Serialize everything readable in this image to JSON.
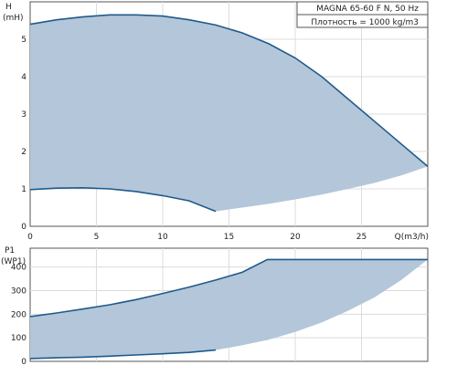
{
  "colors": {
    "fill": "#b4c6d9",
    "curve": "#1f5a8c",
    "grid": "#dcdcdc",
    "axis": "#555555",
    "text": "#222222"
  },
  "chart_data": [
    {
      "id": "head",
      "type": "area",
      "title": "",
      "ylabel": "H",
      "yunit": "(mH)",
      "xlabel": "Q(m3/h)",
      "xlim": [
        0,
        30
      ],
      "ylim": [
        0,
        6
      ],
      "xticks": [
        0,
        5,
        10,
        15,
        20,
        25
      ],
      "yticks": [
        0,
        1,
        2,
        3,
        4,
        5
      ],
      "grid": true,
      "info_box": {
        "placement": "top-right",
        "lines": [
          "MAGNA 65-60 F N, 50 Hz",
          "Плотность = 1000 kg/m3"
        ]
      },
      "series": [
        {
          "role": "upper",
          "x": [
            0,
            2,
            4,
            6,
            8,
            10,
            12,
            14,
            16,
            18,
            20,
            22,
            24,
            26,
            28,
            30
          ],
          "y": [
            5.4,
            5.52,
            5.6,
            5.65,
            5.65,
            5.62,
            5.52,
            5.38,
            5.17,
            4.88,
            4.5,
            4.0,
            3.4,
            2.8,
            2.2,
            1.6
          ]
        },
        {
          "role": "lower",
          "x": [
            0,
            2,
            4,
            6,
            8,
            10,
            12,
            14
          ],
          "y": [
            0.98,
            1.02,
            1.03,
            1.0,
            0.93,
            0.82,
            0.68,
            0.4
          ]
        },
        {
          "role": "min-boundary",
          "x": [
            14,
            16,
            18,
            20,
            22,
            24,
            26,
            28,
            30
          ],
          "y": [
            0.4,
            0.5,
            0.6,
            0.72,
            0.85,
            1.0,
            1.16,
            1.36,
            1.6
          ]
        }
      ]
    },
    {
      "id": "power",
      "type": "area",
      "title": "",
      "ylabel": "P1",
      "yunit": "(WP1)",
      "xlim": [
        0,
        30
      ],
      "ylim": [
        0,
        480
      ],
      "xticks": [
        0,
        5,
        10,
        15,
        20,
        25
      ],
      "yticks": [
        0,
        100,
        200,
        300,
        400
      ],
      "grid": true,
      "series": [
        {
          "role": "upper",
          "x": [
            0,
            2,
            4,
            6,
            8,
            10,
            12,
            14,
            16,
            17.9,
            20,
            22,
            24,
            26,
            28,
            30
          ],
          "y": [
            190,
            205,
            222,
            240,
            262,
            288,
            315,
            345,
            378,
            432,
            432,
            432,
            432,
            432,
            432,
            432
          ]
        },
        {
          "role": "lower",
          "x": [
            0,
            2,
            4,
            6,
            8,
            10,
            12,
            14
          ],
          "y": [
            12,
            15,
            18,
            22,
            27,
            32,
            38,
            48
          ]
        },
        {
          "role": "min-boundary",
          "x": [
            14,
            16,
            18,
            20,
            22,
            24,
            26,
            28,
            30
          ],
          "y": [
            48,
            68,
            92,
            125,
            165,
            215,
            272,
            345,
            432
          ]
        }
      ]
    }
  ]
}
